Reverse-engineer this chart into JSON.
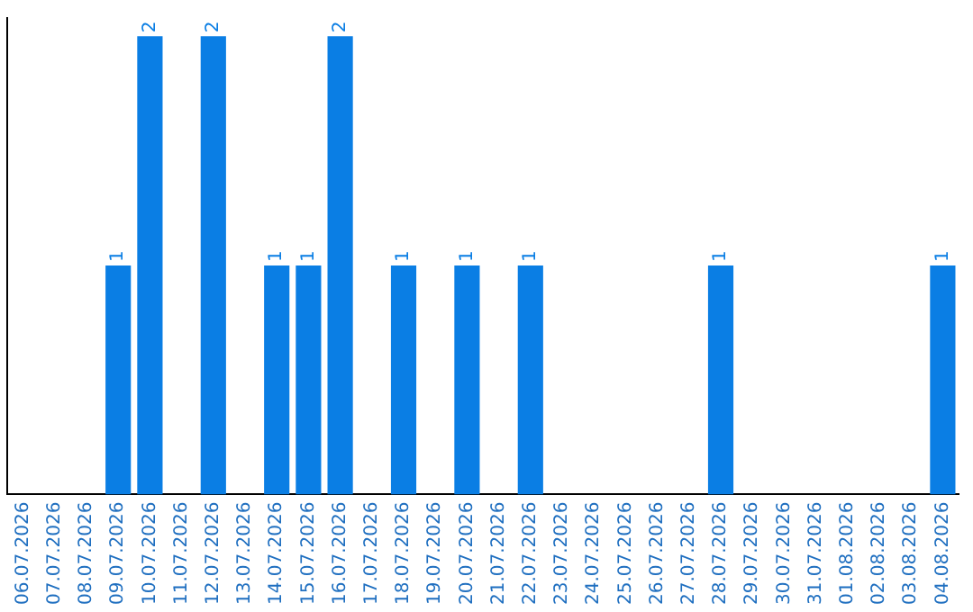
{
  "chart_data": {
    "type": "bar",
    "categories": [
      "06.07.2026",
      "07.07.2026",
      "08.07.2026",
      "09.07.2026",
      "10.07.2026",
      "11.07.2026",
      "12.07.2026",
      "13.07.2026",
      "14.07.2026",
      "15.07.2026",
      "16.07.2026",
      "17.07.2026",
      "18.07.2026",
      "19.07.2026",
      "20.07.2026",
      "21.07.2026",
      "22.07.2026",
      "23.07.2026",
      "24.07.2026",
      "25.07.2026",
      "26.07.2026",
      "27.07.2026",
      "28.07.2026",
      "29.07.2026",
      "30.07.2026",
      "31.07.2026",
      "01.08.2026",
      "02.08.2026",
      "03.08.2026",
      "04.08.2026"
    ],
    "values": [
      0,
      0,
      0,
      1,
      2,
      0,
      2,
      0,
      1,
      1,
      2,
      0,
      1,
      0,
      1,
      0,
      1,
      0,
      0,
      0,
      0,
      0,
      1,
      0,
      0,
      0,
      0,
      0,
      0,
      1
    ],
    "value_labels": [
      null,
      null,
      null,
      "1",
      "2",
      null,
      "2",
      null,
      "1",
      "1",
      "2",
      null,
      "1",
      null,
      "1",
      null,
      "1",
      null,
      null,
      null,
      null,
      null,
      "1",
      null,
      null,
      null,
      null,
      null,
      null,
      "1"
    ],
    "color": "#0a7ee4",
    "ylim": [
      0,
      2.08
    ],
    "tick_labels": "x",
    "grid": false,
    "legend": false
  }
}
